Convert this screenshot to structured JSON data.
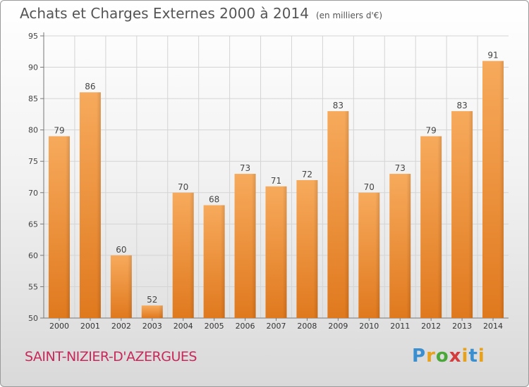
{
  "title": "Achats et Charges Externes 2000 à 2014",
  "subtitle": "(en milliers d'€)",
  "commune": "SAINT-NIZIER-D'AZERGUES",
  "logo": {
    "p": "P",
    "r": "r",
    "o": "o",
    "x": "x",
    "i": "i",
    "t": "t",
    "i2": "i"
  },
  "colors": {
    "bar_light": "#f7a95a",
    "bar_dark": "#e07a1f",
    "commune": "#c8285a"
  },
  "chart_data": {
    "type": "bar",
    "title": "Achats et Charges Externes 2000 à 2014",
    "subtitle": "(en milliers d'€)",
    "xlabel": "",
    "ylabel": "",
    "categories": [
      "2000",
      "2001",
      "2002",
      "2003",
      "2004",
      "2005",
      "2006",
      "2007",
      "2008",
      "2009",
      "2010",
      "2011",
      "2012",
      "2013",
      "2014"
    ],
    "values": [
      79,
      86,
      60,
      52,
      70,
      68,
      73,
      71,
      72,
      83,
      70,
      73,
      79,
      83,
      91
    ],
    "ylim": [
      50,
      95
    ],
    "yticks": [
      50,
      55,
      60,
      65,
      70,
      75,
      80,
      85,
      90,
      95
    ],
    "grid": true,
    "legend": "none"
  }
}
